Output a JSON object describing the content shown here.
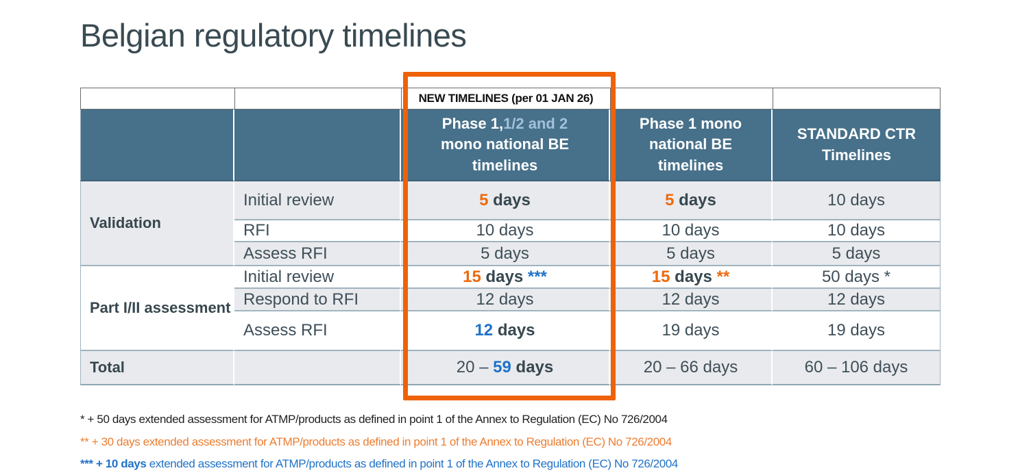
{
  "title": "Belgian regulatory timelines",
  "table": {
    "banner": "NEW TIMELINES (per 01 JAN 26)",
    "headers": {
      "phase12_part1": "Phase 1,",
      "phase12_part2": "1/2 and 2",
      "phase12_part3": "mono national BE timelines",
      "phase1_mono": "Phase 1 mono national BE timelines",
      "standard_ctr": "STANDARD CTR Timelines"
    },
    "groups": {
      "validation": {
        "label": "Validation",
        "rows": {
          "initial_review": {
            "label": "Initial review",
            "new_num": "5",
            "new_unit": " days",
            "mono_num": "5",
            "mono_unit": " days",
            "ctr": "10 days"
          },
          "rfi": {
            "label": "RFI",
            "new": "10 days",
            "mono": "10 days",
            "ctr": "10 days"
          },
          "assess_rfi": {
            "label": "Assess RFI",
            "new": "5 days",
            "mono": "5 days",
            "ctr": "5 days"
          }
        }
      },
      "part_i_ii": {
        "label": "Part I/II assessment",
        "rows": {
          "initial_review": {
            "label": "Initial review",
            "new_num": "15",
            "new_unit": " days ",
            "new_stars": "***",
            "mono_num": "15",
            "mono_unit": " days ",
            "mono_stars": "**",
            "ctr": "50 days *"
          },
          "respond_rfi": {
            "label": "Respond to RFI",
            "new": "12 days",
            "mono": "12 days",
            "ctr": "12 days"
          },
          "assess_rfi": {
            "label": "Assess RFI",
            "new_num": "12",
            "new_unit": " days",
            "mono": "19 days",
            "ctr": "19 days"
          }
        }
      }
    },
    "total": {
      "label": "Total",
      "new_prefix": "20 – ",
      "new_num": "59",
      "new_unit": " days",
      "mono": "20 – 66 days",
      "ctr": "60 – 106 days"
    }
  },
  "footnotes": [
    {
      "text": "* + 50 days extended assessment for ATMP/products as defined in point 1 of the Annex to Regulation (EC) No 726/2004"
    },
    {
      "text": "** + 30 days extended assessment for ATMP/products as defined in point 1 of the Annex to Regulation (EC) No 726/2004"
    },
    {
      "bold": "*** + 10 days",
      "text": " extended assessment for ATMP/products as defined in point 1 of the Annex to Regulation (EC) No 726/2004"
    }
  ],
  "colors": {
    "title_text": "#3A4A52",
    "header_bg": "#47708A",
    "header_accent": "#A3C1DB",
    "header_edge": "#3E6279",
    "row_alt_bg": "#E9EAED",
    "divider": "#9FB3BF",
    "divider_strong": "#8FA6B3",
    "text_dark": "#3E4E58",
    "text_strong": "#37474F",
    "orange": "#ED6A0E",
    "footnote_orange": "#ED7D31",
    "blue": "#1F72C8",
    "highlight_box": "#EE6209",
    "banner_border": "#6A6A6A"
  }
}
